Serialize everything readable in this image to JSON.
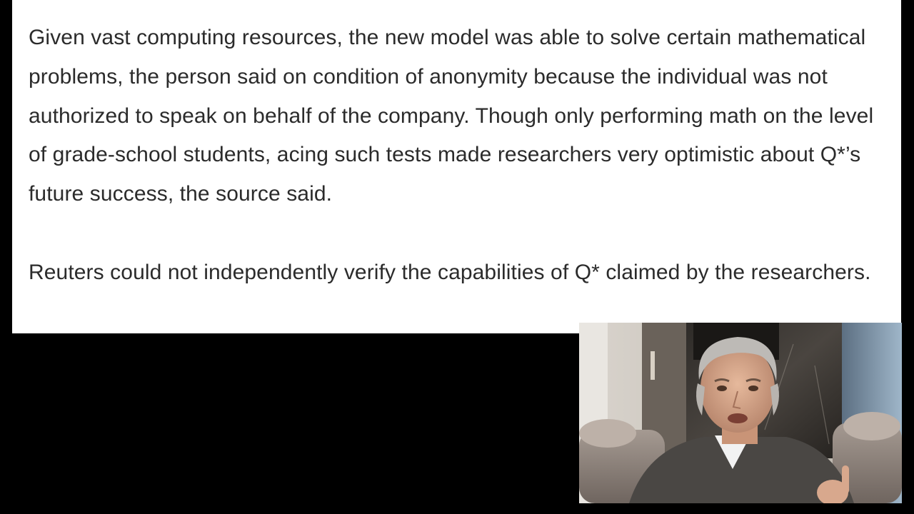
{
  "article": {
    "paragraphs": [
      "Given vast computing resources, the new model was able to solve certain mathematical problems, the person said on condition of anonymity because the individual was not authorized to speak on behalf of the company. Though only performing math on the level of grade-school students, acing such tests made researchers very optimistic about Q*’s future success, the source said.",
      "Reuters could not independently verify the capabilities of Q* claimed by the researchers."
    ]
  },
  "colors": {
    "page_background": "#000000",
    "card_background": "#ffffff",
    "body_text": "#2b2b2b"
  }
}
